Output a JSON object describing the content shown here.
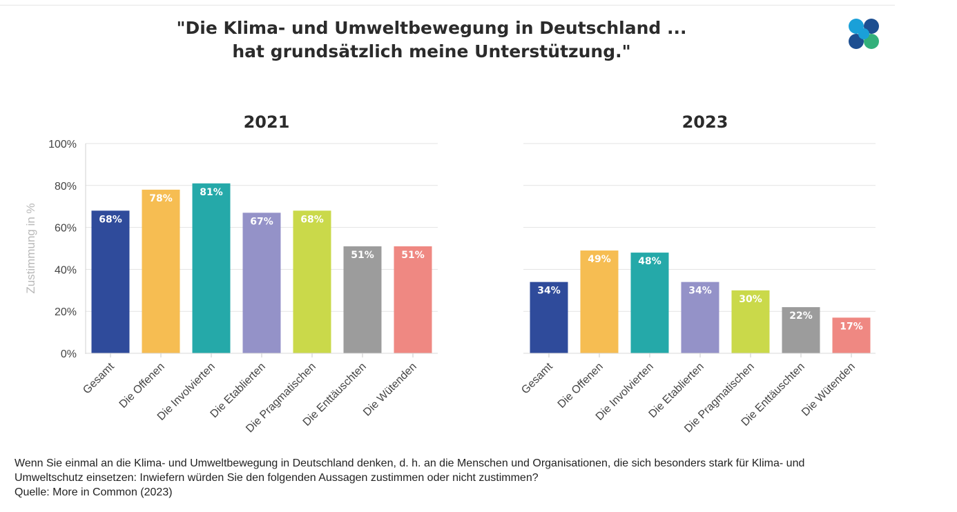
{
  "title_line1": "\"Die Klima- und Umweltbewegung in Deutschland ...",
  "title_line2": "hat grundsätzlich meine Unterstützung.\"",
  "logo": {
    "name": "more-in-common-logo",
    "colors": [
      "#1aa0d8",
      "#1d4f91",
      "#33b07a"
    ]
  },
  "chart_data": [
    {
      "type": "bar",
      "title": "2021",
      "ylabel": "Zustimmung in %",
      "ylim": [
        0,
        100
      ],
      "yticks": [
        "0%",
        "20%",
        "40%",
        "60%",
        "80%",
        "100%"
      ],
      "grid": true,
      "categories": [
        "Gesamt",
        "Die Offenen",
        "Die Involvierten",
        "Die Etablierten",
        "Die Pragmatischen",
        "Die Enttäuschten",
        "Die Wütenden"
      ],
      "values": [
        68,
        78,
        81,
        67,
        68,
        51,
        51
      ],
      "labels": [
        "68%",
        "78%",
        "81%",
        "67%",
        "68%",
        "51%",
        "51%"
      ]
    },
    {
      "type": "bar",
      "title": "2023",
      "ylim": [
        0,
        100
      ],
      "grid": true,
      "categories": [
        "Gesamt",
        "Die Offenen",
        "Die Involvierten",
        "Die Etablierten",
        "Die Pragmatischen",
        "Die Enttäuschten",
        "Die Wütenden"
      ],
      "values": [
        34,
        49,
        48,
        34,
        30,
        22,
        17
      ],
      "labels": [
        "34%",
        "49%",
        "48%",
        "34%",
        "30%",
        "22%",
        "17%"
      ]
    }
  ],
  "bar_colors": [
    "#2f4b9b",
    "#f6bd52",
    "#25a9a9",
    "#9492c8",
    "#cad94a",
    "#9c9c9c",
    "#ef8882"
  ],
  "note": {
    "line1": "Wenn Sie einmal an die Klima- und Umweltbewegung in Deutschland denken, d. h. an die Menschen und Organisationen, die sich besonders stark für Klima- und",
    "line2": "Umweltschutz einsetzen: Inwiefern würden Sie den folgenden Aussagen zustimmen oder nicht zustimmen?",
    "source": "Quelle: More in Common (2023)"
  }
}
